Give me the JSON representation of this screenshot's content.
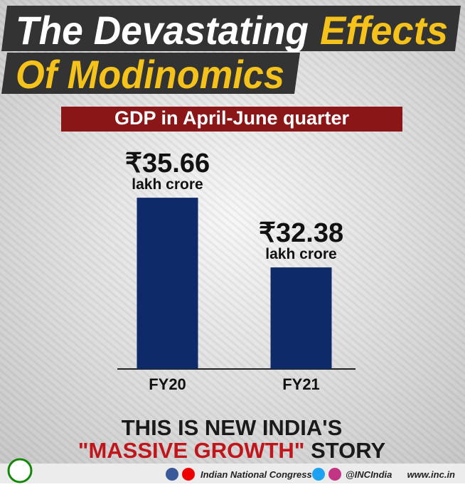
{
  "title_line1_white": "The Devastating",
  "title_line1_yellow": "Effects",
  "title_line2": "Of Modinomics",
  "chart_data": {
    "type": "bar",
    "title": "GDP in April-June quarter",
    "categories": [
      "FY20",
      "FY21"
    ],
    "values": [
      35.66,
      32.38
    ],
    "value_labels": [
      "₹35.66",
      "₹32.38"
    ],
    "unit": "lakh crore",
    "color": "#0f2a68",
    "ylim": [
      27.6,
      36.5
    ]
  },
  "tagline": {
    "line1": "THIS IS NEW INDIA'S",
    "highlight": "\"MASSIVE GROWTH\"",
    "end": "STORY"
  },
  "footer": {
    "org": "Indian National Congress",
    "handle": "@INCIndia",
    "site": "www.inc.in"
  }
}
